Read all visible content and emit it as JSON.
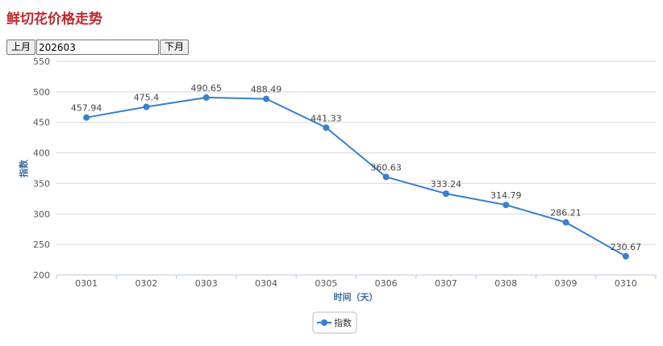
{
  "page": {
    "title": "鲜切花价格走势"
  },
  "controls": {
    "prev_label": "上月",
    "month_value": "202603",
    "next_label": "下月"
  },
  "colors": {
    "title": "#c1272d",
    "series": "#3a7fcf",
    "axis_label": "#3a6a9c",
    "grid": "#d8d8d8"
  },
  "chart_data": {
    "type": "line",
    "categories": [
      "0301",
      "0302",
      "0303",
      "0304",
      "0305",
      "0306",
      "0307",
      "0308",
      "0309",
      "0310"
    ],
    "series": [
      {
        "name": "指数",
        "values": [
          457.94,
          475.4,
          490.65,
          488.49,
          441.33,
          360.63,
          333.24,
          314.79,
          286.21,
          230.67
        ]
      }
    ],
    "data_labels": [
      "457.94",
      "475.4",
      "490.65",
      "488.49",
      "441.33",
      "360.63",
      "333.24",
      "314.79",
      "286.21",
      "230.67"
    ],
    "xlabel": "时间（天）",
    "ylabel": "指数",
    "ylim": [
      200,
      550
    ],
    "yticks": [
      "200",
      "250",
      "300",
      "350",
      "400",
      "450",
      "500",
      "550"
    ],
    "grid": true,
    "legend": {
      "position": "bottom-center",
      "marker": "line-dot"
    }
  }
}
